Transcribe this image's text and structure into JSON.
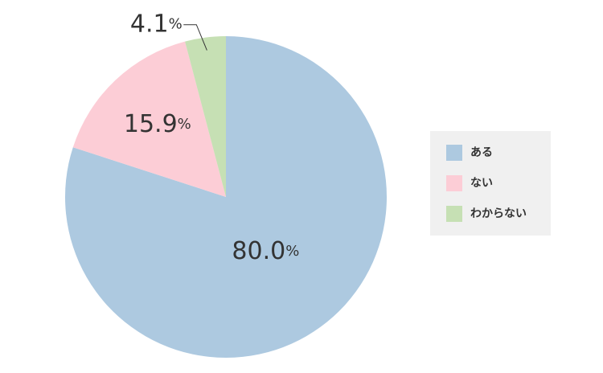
{
  "chart_data": {
    "type": "pie",
    "categories": [
      "ある",
      "ない",
      "わからない"
    ],
    "values": [
      80.0,
      15.9,
      4.1
    ],
    "value_labels": [
      "80.0%",
      "15.9%",
      "4.1%"
    ],
    "colors": [
      "#adc9e0",
      "#fccdd6",
      "#c6e0b4"
    ],
    "legend": "right"
  }
}
